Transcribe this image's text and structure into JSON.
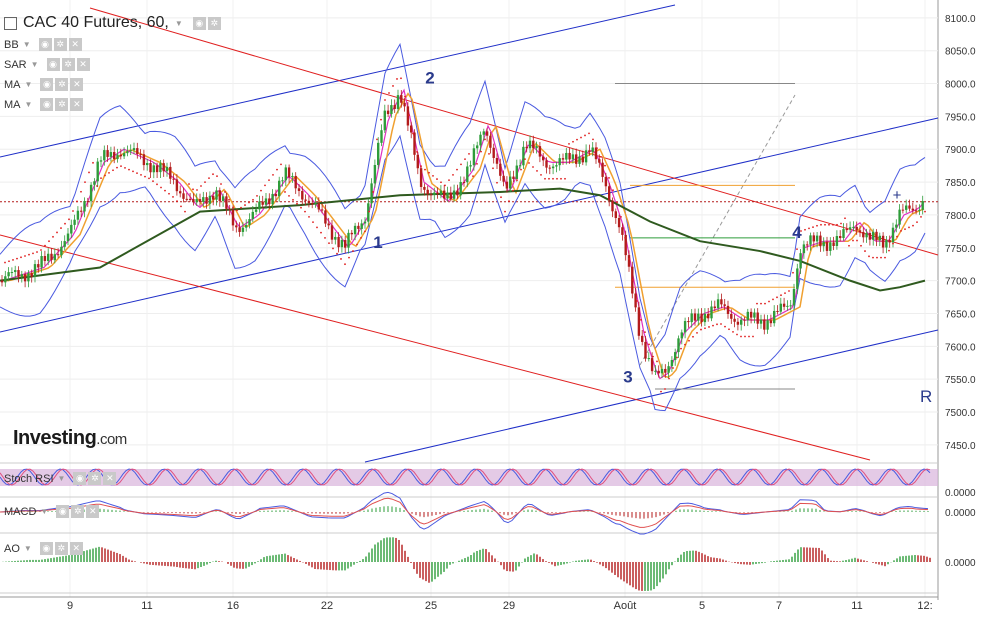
{
  "header": {
    "title": "CAC 40 Futures, 60,"
  },
  "indicators": [
    {
      "label": "BB"
    },
    {
      "label": "SAR"
    },
    {
      "label": "MA"
    },
    {
      "label": "MA"
    }
  ],
  "panels": {
    "stoch": "Stoch RSI",
    "macd": "MACD",
    "ao": "AO"
  },
  "logo": {
    "text": "Investing",
    "suffix": ".com"
  },
  "right_button": "R",
  "colors": {
    "up": "#2e9c3a",
    "down": "#b31b1b",
    "bb": "#4a5ae0",
    "channel_blue": "#1f2fc8",
    "channel_red": "#e02020",
    "ma_fast": "#f0a030",
    "ma_slow": "#2f5a1f",
    "sar": "#e02020",
    "stoch_fill": "#d9b3dc",
    "macd_line": "#4a5ae0",
    "signal_line": "#e05050"
  },
  "chart_data": {
    "type": "line",
    "price_axis": {
      "ticks": [
        "8100.0",
        "8050.0",
        "8000.0",
        "7950.0",
        "7900.0",
        "7850.0",
        "7800.0",
        "7750.0",
        "7700.0",
        "7650.0",
        "7600.0",
        "7550.0",
        "7500.0",
        "7450.0"
      ],
      "range": [
        7430,
        8115
      ]
    },
    "x_axis_labels": [
      "9",
      "11",
      "16",
      "22",
      "25",
      "29",
      "Août",
      "5",
      "7",
      "11",
      "12:"
    ],
    "price_series": [
      [
        0,
        7700
      ],
      [
        40,
        7720
      ],
      [
        70,
        7770
      ],
      [
        100,
        7880
      ],
      [
        120,
        7900
      ],
      [
        150,
        7880
      ],
      [
        175,
        7850
      ],
      [
        195,
        7810
      ],
      [
        215,
        7840
      ],
      [
        235,
        7780
      ],
      [
        255,
        7800
      ],
      [
        285,
        7860
      ],
      [
        305,
        7830
      ],
      [
        325,
        7790
      ],
      [
        345,
        7750
      ],
      [
        365,
        7800
      ],
      [
        385,
        7950
      ],
      [
        400,
        7990
      ],
      [
        420,
        7850
      ],
      [
        445,
        7820
      ],
      [
        470,
        7870
      ],
      [
        485,
        7940
      ],
      [
        505,
        7830
      ],
      [
        525,
        7910
      ],
      [
        545,
        7880
      ],
      [
        565,
        7880
      ],
      [
        590,
        7900
      ],
      [
        605,
        7850
      ],
      [
        620,
        7780
      ],
      [
        640,
        7620
      ],
      [
        655,
        7550
      ],
      [
        665,
        7560
      ],
      [
        680,
        7620
      ],
      [
        700,
        7650
      ],
      [
        720,
        7660
      ],
      [
        740,
        7640
      ],
      [
        765,
        7640
      ],
      [
        790,
        7660
      ],
      [
        800,
        7750
      ],
      [
        820,
        7760
      ],
      [
        840,
        7760
      ],
      [
        855,
        7790
      ],
      [
        870,
        7760
      ],
      [
        885,
        7760
      ],
      [
        900,
        7800
      ],
      [
        915,
        7810
      ],
      [
        925,
        7830
      ]
    ],
    "ma_slow": [
      [
        0,
        7700
      ],
      [
        100,
        7720
      ],
      [
        200,
        7805
      ],
      [
        300,
        7815
      ],
      [
        400,
        7830
      ],
      [
        500,
        7835
      ],
      [
        560,
        7840
      ],
      [
        600,
        7830
      ],
      [
        650,
        7790
      ],
      [
        700,
        7760
      ],
      [
        760,
        7745
      ],
      [
        800,
        7730
      ],
      [
        850,
        7700
      ],
      [
        880,
        7685
      ],
      [
        900,
        7690
      ],
      [
        925,
        7700
      ]
    ],
    "wave_labels": [
      {
        "label": "1",
        "x": 378,
        "y": 7750
      },
      {
        "label": "2",
        "x": 430,
        "y": 8000
      },
      {
        "label": "3",
        "x": 628,
        "y": 7545
      },
      {
        "label": "4",
        "x": 797,
        "y": 7765
      }
    ],
    "levels": [
      {
        "value": 7845,
        "color": "#f0a030"
      },
      {
        "value": 7765,
        "color": "#2e9c3a"
      },
      {
        "value": 7690,
        "color": "#f0a030"
      },
      {
        "value": 8000,
        "color": "#888888"
      },
      {
        "value": 7535,
        "color": "#888888"
      },
      {
        "value": 7820,
        "color": "#b31b1b"
      }
    ],
    "stoch_axis": "0.0000",
    "macd_axis": "0.0000",
    "ao_axis": "0.0000"
  }
}
